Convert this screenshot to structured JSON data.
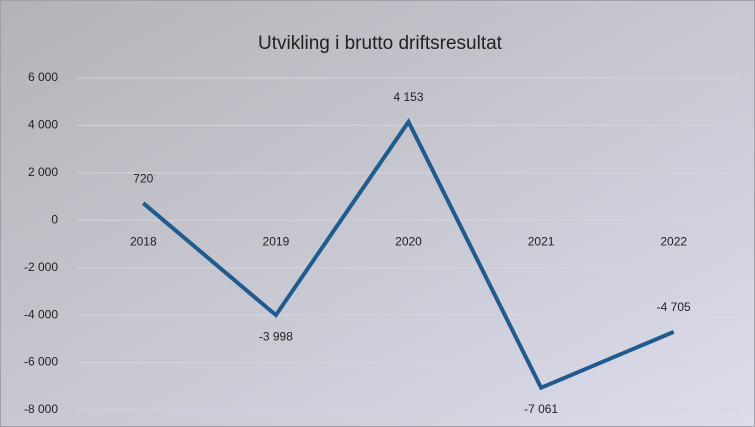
{
  "chart_data": {
    "type": "line",
    "title": "Utvikling i brutto driftsresultat",
    "categories": [
      "2018",
      "2019",
      "2020",
      "2021",
      "2022"
    ],
    "series": [
      {
        "name": "Brutto driftsresultat",
        "color": "#1f5b8e",
        "values": [
          720,
          -3998,
          4153,
          -7061,
          -4705
        ],
        "value_labels": [
          "720",
          "-3 998",
          "4 153",
          "-7 061",
          "-4 705"
        ]
      }
    ],
    "ylim": [
      -8000,
      6000
    ],
    "yticks": [
      {
        "value": -8000,
        "label": "-8 000"
      },
      {
        "value": -6000,
        "label": "-6 000"
      },
      {
        "value": -4000,
        "label": "-4 000"
      },
      {
        "value": -2000,
        "label": "-2 000"
      },
      0,
      {
        "value": 2000,
        "label": "2 000"
      },
      {
        "value": 4000,
        "label": "4 000"
      },
      {
        "value": 6000,
        "label": "6 000"
      }
    ],
    "grid": true
  }
}
